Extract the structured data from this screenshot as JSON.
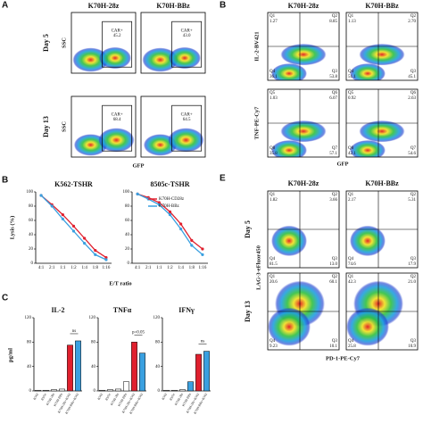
{
  "panels": {
    "a": {
      "label": "A",
      "columns": [
        "K70H-28z",
        "K70H-BBz"
      ],
      "rows": [
        "Day 5",
        "Day 13"
      ],
      "y_label": "SSC",
      "x_label": "GFP",
      "gate_label": "CAR+",
      "gates": [
        "45.2",
        "43.0",
        "68.4",
        "64.5"
      ]
    },
    "b": {
      "label": "B",
      "columns": [
        "K70H-28z",
        "K70H-BBz"
      ],
      "y_labels": [
        "IL-2-BV421",
        "TNF-PE-Cy7"
      ],
      "x_label": "GFP",
      "plots": [
        [
          {
            "name": "Q1",
            "value": "1.27"
          },
          {
            "name": "Q2",
            "value": "8.85"
          },
          {
            "name": "Q4",
            "value": "36.1"
          },
          {
            "name": "Q3",
            "value": "53.8"
          }
        ],
        [
          {
            "name": "Q1",
            "value": "1.13"
          },
          {
            "name": "Q2",
            "value": "2.70"
          },
          {
            "name": "Q4",
            "value": "51.1"
          },
          {
            "name": "Q3",
            "value": "45.1"
          }
        ],
        [
          {
            "name": "Q5",
            "value": "1.03"
          },
          {
            "name": "Q6",
            "value": "6.07"
          },
          {
            "name": "Q8",
            "value": "35.8"
          },
          {
            "name": "Q7",
            "value": "57.1"
          }
        ],
        [
          {
            "name": "Q5",
            "value": "0.92"
          },
          {
            "name": "Q6",
            "value": "2.63"
          },
          {
            "name": "Q8",
            "value": "42.1"
          },
          {
            "name": "Q7",
            "value": "54.6"
          }
        ]
      ]
    },
    "b2": {
      "label": "B",
      "y_label": "Lysis (%)",
      "x_label": "E/T ratio"
    },
    "c": {
      "label": "C",
      "y_label": "pg/ml"
    },
    "e": {
      "label": "E",
      "columns": [
        "K70H-28z",
        "K70H-BBz"
      ],
      "rows": [
        "Day 5",
        "Day 13"
      ],
      "y_label": "LAG-3-eFluor450",
      "x_label": "PD-1-PE-Cy7",
      "plots": [
        [
          {
            "name": "Q1",
            "value": "1.82"
          },
          {
            "name": "Q2",
            "value": "3.66"
          },
          {
            "name": "Q4",
            "value": "81.5"
          },
          {
            "name": "Q3",
            "value": "13.0"
          }
        ],
        [
          {
            "name": "Q1",
            "value": "2.17"
          },
          {
            "name": "Q2",
            "value": "5.31"
          },
          {
            "name": "Q4",
            "value": "74.6"
          },
          {
            "name": "Q3",
            "value": "17.9"
          }
        ],
        [
          {
            "name": "Q1",
            "value": "20.6"
          },
          {
            "name": "Q2",
            "value": "60.1"
          },
          {
            "name": "Q4",
            "value": "9.23"
          },
          {
            "name": "Q3",
            "value": "10.1"
          }
        ],
        [
          {
            "name": "Q1",
            "value": "42.3"
          },
          {
            "name": "Q2",
            "value": "21.0"
          },
          {
            "name": "Q4",
            "value": "25.8"
          },
          {
            "name": "Q3",
            "value": "10.9"
          }
        ]
      ]
    }
  },
  "chart_data": [
    {
      "type": "line",
      "title": "K562-TSHR",
      "categories": [
        "4:1",
        "2:1",
        "1:1",
        "1:2",
        "1:4",
        "1:8",
        "1:16"
      ],
      "ylim": [
        0,
        100
      ],
      "yticks": [
        0,
        20,
        40,
        60,
        80,
        100
      ],
      "series": [
        {
          "name": "K70H-CD28z",
          "color": "#e0202e",
          "values": [
            95,
            82,
            68,
            52,
            35,
            18,
            8
          ]
        },
        {
          "name": "K70H-BBz",
          "color": "#3aa0e0",
          "values": [
            95,
            80,
            62,
            45,
            28,
            12,
            5
          ]
        }
      ]
    },
    {
      "type": "line",
      "title": "8505c-TSHR",
      "categories": [
        "4:1",
        "2:1",
        "1:1",
        "1:2",
        "1:4",
        "1:8",
        "1:16"
      ],
      "ylim": [
        0,
        100
      ],
      "yticks": [
        0,
        20,
        40,
        60,
        80,
        100
      ],
      "legend": "top-right",
      "series": [
        {
          "name": "K70H-CD28z",
          "color": "#e0202e",
          "values": [
            97,
            92,
            85,
            72,
            55,
            32,
            20
          ]
        },
        {
          "name": "K70H-BBz",
          "color": "#3aa0e0",
          "values": [
            97,
            90,
            82,
            68,
            48,
            25,
            12
          ]
        }
      ]
    },
    {
      "type": "bar",
      "title": "IL-2",
      "categories": [
        "K562",
        "8505c",
        "K70H-28z",
        "K70H-BBz",
        "K70H-28z+K562",
        "K70H-BBz+K562"
      ],
      "colors": [
        "#ffffff",
        "#ffffff",
        "#ffffff",
        "#ffffff",
        "#e0202e",
        "#3aa0e0"
      ],
      "values": [
        1,
        1,
        2,
        3,
        75,
        82
      ],
      "ylim": [
        0,
        120
      ],
      "yticks": [
        0,
        40,
        80,
        120
      ],
      "annotation": "ns"
    },
    {
      "type": "bar",
      "title": "TNFα",
      "categories": [
        "K562",
        "8505c",
        "K70H-28z",
        "K70H-BBz",
        "K70H-28z+K562",
        "K70H-BBz+K562"
      ],
      "colors": [
        "#ffffff",
        "#ffffff",
        "#ffffff",
        "#ffffff",
        "#e0202e",
        "#3aa0e0"
      ],
      "values": [
        1,
        2,
        3,
        15,
        80,
        62
      ],
      "ylim": [
        0,
        120
      ],
      "yticks": [
        0,
        40,
        80,
        120
      ],
      "annotation": "p=0.05"
    },
    {
      "type": "bar",
      "title": "IFNγ",
      "categories": [
        "K562",
        "8505c",
        "K70H-28z",
        "K70H-BBz",
        "K70H-28z+K562",
        "K70H-BBz+K562"
      ],
      "colors": [
        "#ffffff",
        "#ffffff",
        "#ffffff",
        "#3aa0e0",
        "#e0202e",
        "#3aa0e0"
      ],
      "values": [
        1,
        1,
        2,
        15,
        60,
        65
      ],
      "ylim": [
        0,
        120
      ],
      "yticks": [
        0,
        40,
        80,
        120
      ],
      "annotation": "ns"
    }
  ]
}
